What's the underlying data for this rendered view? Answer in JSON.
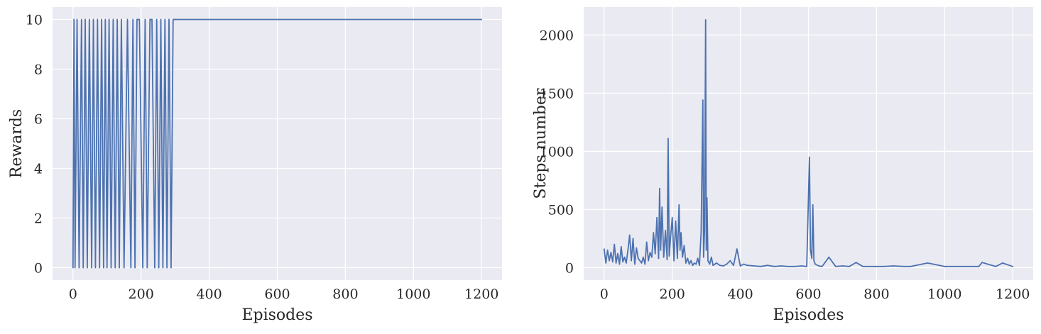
{
  "chart_data": [
    {
      "type": "line",
      "title": "",
      "xlabel": "Episodes",
      "ylabel": "Rewards",
      "xlim": [
        -60,
        1260
      ],
      "ylim": [
        -0.5,
        10.5
      ],
      "xticks": [
        0,
        200,
        400,
        600,
        800,
        1000,
        1200
      ],
      "yticks": [
        0,
        2,
        4,
        6,
        8,
        10
      ],
      "grid": true,
      "color": "#4c72b0",
      "series": [
        {
          "name": "",
          "description_free": true,
          "x": [
            0,
            3,
            6,
            12,
            18,
            25,
            30,
            36,
            42,
            48,
            55,
            60,
            66,
            72,
            78,
            84,
            90,
            95,
            100,
            106,
            112,
            118,
            124,
            130,
            136,
            142,
            150,
            160,
            170,
            176,
            182,
            188,
            195,
            205,
            212,
            218,
            226,
            232,
            240,
            246,
            252,
            258,
            264,
            270,
            276,
            282,
            288,
            294,
            300,
            1200
          ],
          "values": [
            0,
            10,
            0,
            10,
            0,
            10,
            0,
            10,
            0,
            10,
            0,
            10,
            0,
            10,
            0,
            10,
            0,
            10,
            0,
            10,
            0,
            10,
            0,
            10,
            0,
            10,
            0,
            10,
            0,
            10,
            0,
            10,
            10,
            0,
            10,
            0,
            10,
            10,
            0,
            10,
            0,
            10,
            0,
            10,
            0,
            10,
            0,
            10,
            10,
            10
          ]
        }
      ]
    },
    {
      "type": "line",
      "title": "",
      "xlabel": "Episodes",
      "ylabel": "Steps number",
      "xlim": [
        -60,
        1260
      ],
      "ylim": [
        -107,
        2240
      ],
      "xticks": [
        0,
        200,
        400,
        600,
        800,
        1000,
        1200
      ],
      "yticks": [
        0,
        500,
        1000,
        1500,
        2000
      ],
      "grid": true,
      "color": "#4c72b0",
      "series": [
        {
          "name": "",
          "x": [
            0,
            5,
            10,
            15,
            20,
            25,
            30,
            35,
            40,
            45,
            50,
            55,
            60,
            65,
            70,
            75,
            80,
            85,
            90,
            95,
            100,
            105,
            110,
            115,
            120,
            125,
            130,
            135,
            140,
            145,
            150,
            155,
            160,
            163,
            166,
            170,
            175,
            180,
            185,
            188,
            191,
            195,
            200,
            205,
            210,
            215,
            220,
            223,
            226,
            230,
            235,
            240,
            245,
            250,
            255,
            260,
            265,
            270,
            275,
            280,
            285,
            290,
            292,
            295,
            298,
            300,
            302,
            305,
            310,
            315,
            320,
            330,
            340,
            350,
            360,
            370,
            380,
            390,
            400,
            410,
            420,
            440,
            460,
            480,
            500,
            520,
            540,
            560,
            580,
            595,
            600,
            603,
            606,
            610,
            613,
            616,
            620,
            630,
            640,
            660,
            680,
            700,
            720,
            740,
            760,
            780,
            800,
            820,
            850,
            880,
            900,
            950,
            1000,
            1050,
            1100,
            1110,
            1150,
            1170,
            1200
          ],
          "values": [
            160,
            40,
            150,
            60,
            130,
            50,
            200,
            40,
            120,
            30,
            180,
            50,
            90,
            40,
            150,
            280,
            60,
            250,
            30,
            170,
            80,
            60,
            40,
            90,
            30,
            220,
            60,
            130,
            90,
            300,
            120,
            430,
            80,
            680,
            150,
            520,
            90,
            320,
            70,
            1110,
            100,
            260,
            430,
            60,
            400,
            80,
            540,
            150,
            300,
            90,
            190,
            40,
            80,
            30,
            60,
            20,
            40,
            30,
            80,
            20,
            310,
            1440,
            90,
            320,
            2130,
            150,
            600,
            60,
            30,
            90,
            20,
            40,
            20,
            15,
            30,
            60,
            20,
            160,
            15,
            30,
            20,
            15,
            10,
            20,
            10,
            15,
            10,
            10,
            15,
            10,
            600,
            950,
            150,
            80,
            540,
            60,
            30,
            15,
            10,
            90,
            10,
            15,
            10,
            45,
            10,
            10,
            10,
            10,
            15,
            10,
            10,
            40,
            10,
            10,
            10,
            45,
            10,
            40,
            10
          ]
        }
      ]
    }
  ]
}
